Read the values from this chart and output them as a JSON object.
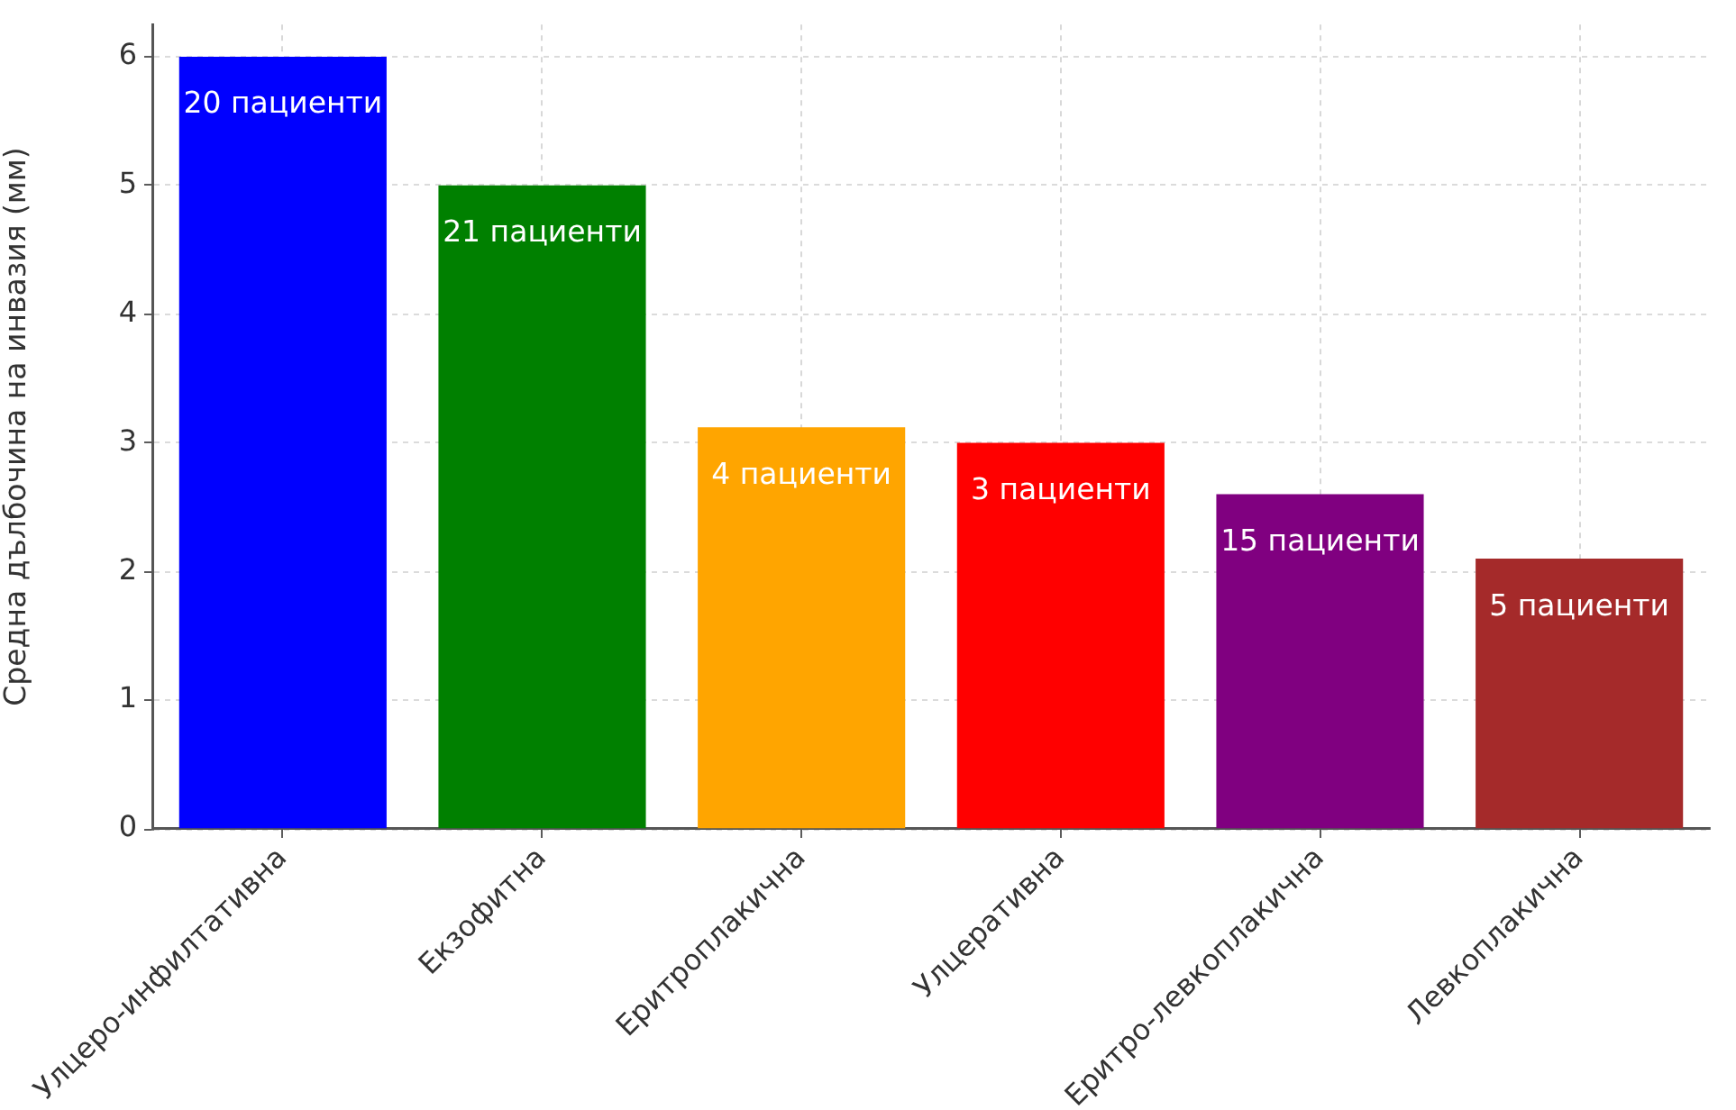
{
  "chart_data": {
    "type": "bar",
    "ylabel": "Средна дълбочина на инвазия (мм)",
    "categories": [
      "Улцеро-инфилтативна",
      "Екзофитна",
      "Еритроплакична",
      "Улцеративна",
      "Еритро-левкоплакична",
      "Левкоплакична"
    ],
    "values": [
      6,
      5,
      3.12,
      3,
      2.6,
      2.1
    ],
    "colors": [
      "#0000ff",
      "#008000",
      "#ffa500",
      "#ff0000",
      "#800080",
      "#a52a2a"
    ],
    "annotations": [
      {
        "text": "20 пациенти",
        "x": "Улцеро-инфилтативна",
        "y": 6
      },
      {
        "text": "21 пациенти",
        "x": "Екзофитна",
        "y": 5
      },
      {
        "text": "4 пациенти",
        "x": "Еритроплакична",
        "y": 3.12
      },
      {
        "text": "3 пациенти",
        "x": "Улцеративна",
        "y": 3
      },
      {
        "text": "15 пациенти",
        "x": "Еритро-левкоплакична",
        "y": 2.6
      },
      {
        "text": "5 пациенти",
        "x": "Левкоплакична",
        "y": 2.1
      }
    ],
    "ylim": [
      0,
      6.25
    ],
    "yticks": [
      0,
      1,
      2,
      3,
      4,
      5,
      6
    ],
    "grid": true
  }
}
